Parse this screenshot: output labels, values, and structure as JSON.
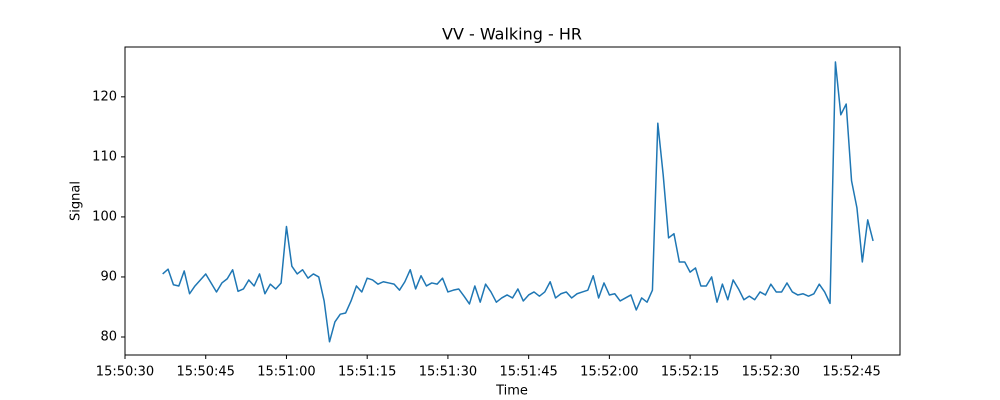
{
  "chart_data": {
    "type": "line",
    "title": "VV - Walking - HR",
    "xlabel": "Time",
    "ylabel": "Signal",
    "color": "#1f77b4",
    "grid": false,
    "x": [
      "15:50:37",
      "15:50:38",
      "15:50:39",
      "15:50:40",
      "15:50:41",
      "15:50:42",
      "15:50:43",
      "15:50:44",
      "15:50:45",
      "15:50:46",
      "15:50:47",
      "15:50:48",
      "15:50:49",
      "15:50:50",
      "15:50:51",
      "15:50:52",
      "15:50:53",
      "15:50:54",
      "15:50:55",
      "15:50:56",
      "15:50:57",
      "15:50:58",
      "15:50:59",
      "15:51:00",
      "15:51:01",
      "15:51:02",
      "15:51:03",
      "15:51:04",
      "15:51:05",
      "15:51:06",
      "15:51:07",
      "15:51:08",
      "15:51:09",
      "15:51:10",
      "15:51:11",
      "15:51:12",
      "15:51:13",
      "15:51:14",
      "15:51:15",
      "15:51:16",
      "15:51:17",
      "15:51:18",
      "15:51:19",
      "15:51:20",
      "15:51:21",
      "15:51:22",
      "15:51:23",
      "15:51:24",
      "15:51:25",
      "15:51:26",
      "15:51:27",
      "15:51:28",
      "15:51:29",
      "15:51:30",
      "15:51:31",
      "15:51:32",
      "15:51:33",
      "15:51:34",
      "15:51:35",
      "15:51:36",
      "15:51:37",
      "15:51:38",
      "15:51:39",
      "15:51:40",
      "15:51:41",
      "15:51:42",
      "15:51:43",
      "15:51:44",
      "15:51:45",
      "15:51:46",
      "15:51:47",
      "15:51:48",
      "15:51:49",
      "15:51:50",
      "15:51:51",
      "15:51:52",
      "15:51:53",
      "15:51:54",
      "15:51:55",
      "15:51:56",
      "15:51:57",
      "15:51:58",
      "15:51:59",
      "15:52:00",
      "15:52:01",
      "15:52:02",
      "15:52:03",
      "15:52:04",
      "15:52:05",
      "15:52:06",
      "15:52:07",
      "15:52:08",
      "15:52:09",
      "15:52:10",
      "15:52:11",
      "15:52:12",
      "15:52:13",
      "15:52:14",
      "15:52:15",
      "15:52:16",
      "15:52:17",
      "15:52:18",
      "15:52:19",
      "15:52:20",
      "15:52:21",
      "15:52:22",
      "15:52:23",
      "15:52:24",
      "15:52:25",
      "15:52:26",
      "15:52:27",
      "15:52:28",
      "15:52:29",
      "15:52:30",
      "15:52:31",
      "15:52:32",
      "15:52:33",
      "15:52:34",
      "15:52:35",
      "15:52:36",
      "15:52:37",
      "15:52:38",
      "15:52:39",
      "15:52:40",
      "15:52:41",
      "15:52:42",
      "15:52:43",
      "15:52:44",
      "15:52:45",
      "15:52:46",
      "15:52:47",
      "15:52:48",
      "15:52:49"
    ],
    "values": [
      90.5,
      91.3,
      88.7,
      88.5,
      91,
      87.2,
      88.5,
      89.5,
      90.5,
      89,
      87.5,
      89,
      89.7,
      91.2,
      87.6,
      88,
      89.5,
      88.5,
      90.5,
      87.2,
      88.8,
      88,
      89,
      98.4,
      91.8,
      90.5,
      91.2,
      89.8,
      90.5,
      90,
      86,
      79.2,
      82.5,
      83.8,
      84,
      86,
      88.5,
      87.5,
      89.8,
      89.5,
      88.8,
      89.2,
      89,
      88.8,
      87.8,
      89.2,
      91.2,
      88,
      90.2,
      88.5,
      89,
      88.8,
      89.8,
      87.5,
      87.8,
      88,
      86.8,
      85.5,
      88.5,
      85.8,
      88.8,
      87.5,
      85.8,
      86.5,
      87,
      86.5,
      88,
      86,
      87,
      87.5,
      86.8,
      87.5,
      89.2,
      86.5,
      87.2,
      87.5,
      86.5,
      87.2,
      87.5,
      87.8,
      90.2,
      86.5,
      89,
      87,
      87.2,
      86,
      86.5,
      87,
      84.5,
      86.5,
      85.8,
      87.8,
      115.6,
      107,
      96.5,
      97.2,
      92.5,
      92.5,
      90.8,
      91.5,
      88.5,
      88.5,
      90,
      85.8,
      88.8,
      86.2,
      89.5,
      88,
      86.2,
      86.8,
      86.2,
      87.5,
      87,
      88.8,
      87.5,
      87.5,
      89,
      87.5,
      87,
      87.2,
      86.8,
      87.2,
      88.8,
      87.5,
      85.6,
      125.8,
      117,
      118.8,
      106,
      101.5,
      92.5,
      99.5,
      96
    ],
    "xlim": [
      "15:50:30",
      "15:52:54"
    ],
    "xticks": [
      "15:50:30",
      "15:50:45",
      "15:51:00",
      "15:51:15",
      "15:51:30",
      "15:51:45",
      "15:52:00",
      "15:52:15",
      "15:52:30",
      "15:52:45"
    ],
    "ylim": [
      77,
      128.3
    ],
    "yticks": [
      80,
      90,
      100,
      110,
      120
    ]
  }
}
